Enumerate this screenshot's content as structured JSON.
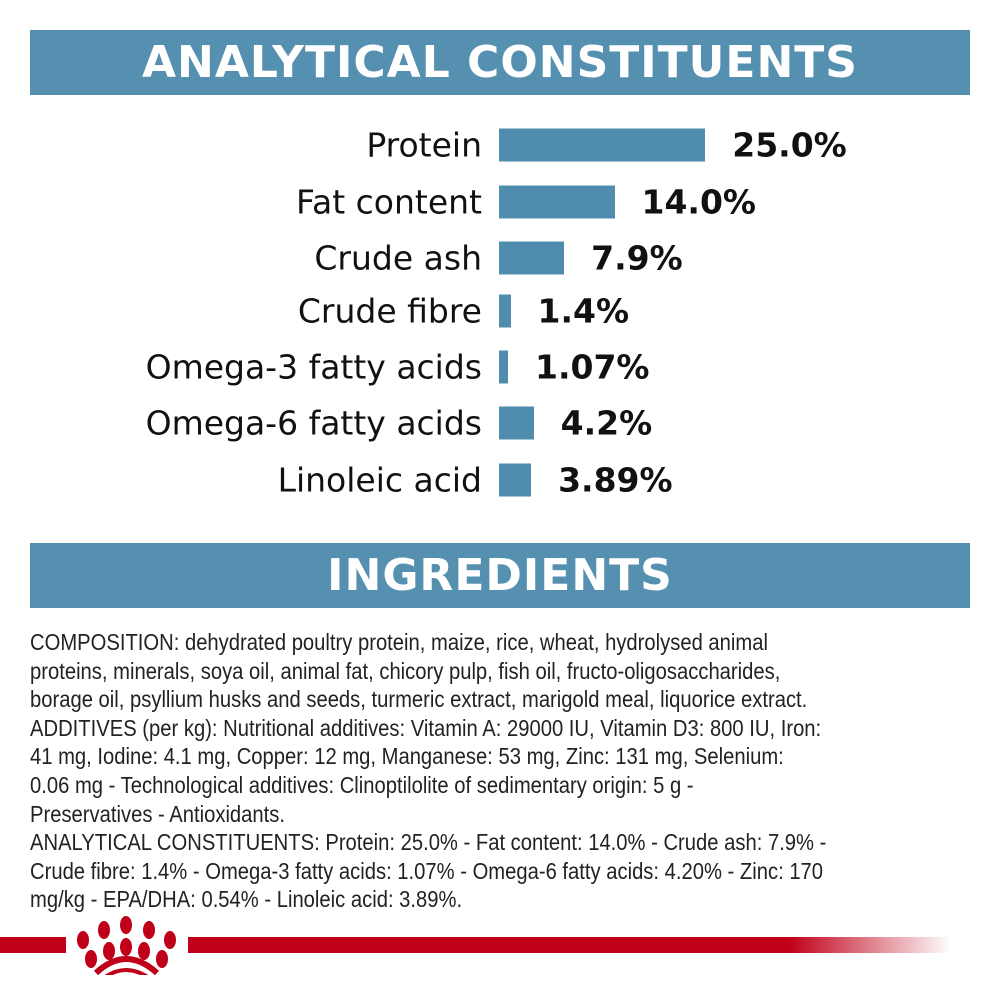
{
  "chart_data": {
    "type": "bar",
    "orientation": "horizontal",
    "title": "ANALYTICAL CONSTITUENTS",
    "categories": [
      "Protein",
      "Fat content",
      "Crude ash",
      "Crude fibre",
      "Omega-3 fatty acids",
      "Omega-6 fatty acids",
      "Linoleic acid"
    ],
    "values": [
      25.0,
      14.0,
      7.9,
      1.4,
      1.07,
      4.2,
      3.89
    ],
    "value_labels": [
      "25.0%",
      "14.0%",
      "7.9%",
      "1.4%",
      "1.07%",
      "4.2%",
      "3.89%"
    ],
    "unit": "%",
    "grid": false,
    "bar_color": "#4f8cad"
  },
  "ingredients": {
    "title": "INGREDIENTS",
    "lines": [
      "COMPOSITION: dehydrated poultry protein, maize, rice, wheat, hydrolysed animal",
      "proteins, minerals, soya oil, animal fat, chicory pulp, fish oil, fructo-oligosaccharides,",
      "borage oil, psyllium husks and seeds, turmeric extract, marigold meal, liquorice extract.",
      "ADDITIVES (per kg): Nutritional additives: Vitamin A: 29000 IU, Vitamin D3: 800 IU, Iron:",
      "41 mg, Iodine: 4.1 mg, Copper: 12 mg, Manganese: 53 mg, Zinc: 131 mg, Selenium:",
      "0.06 mg - Technological additives: Clinoptilolite of sedimentary origin: 5 g -",
      "Preservatives - Antioxidants.",
      "ANALYTICAL CONSTITUENTS: Protein: 25.0% - Fat content: 14.0% - Crude ash: 7.9% -",
      "Crude fibre: 1.4% - Omega-3 fatty acids: 1.07% - Omega-6 fatty acids: 4.20% - Zinc: 170",
      "mg/kg - EPA/DHA: 0.54% - Linoleic acid: 3.89%."
    ]
  },
  "colors": {
    "header": "#5690b0",
    "brand_red": "#c00018"
  },
  "logo": {
    "icon": "royal-canin-crown-logo-icon"
  }
}
